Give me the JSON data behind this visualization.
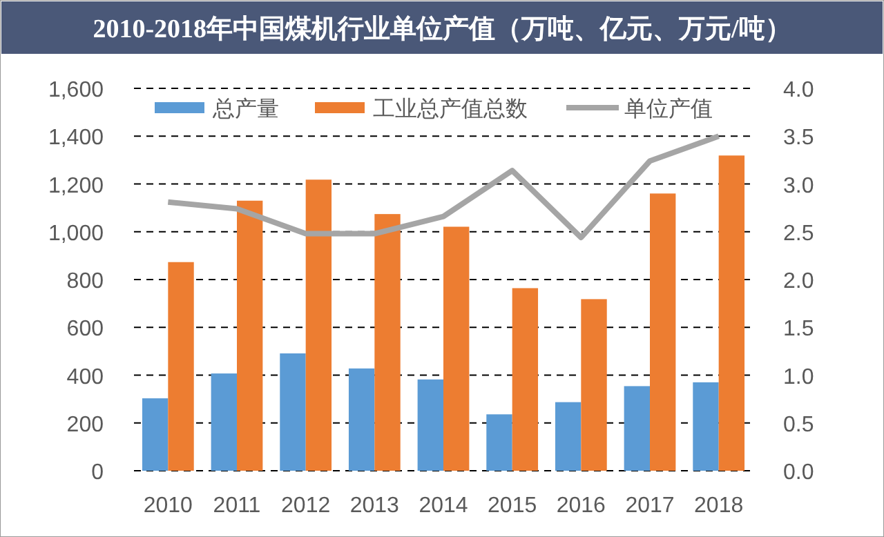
{
  "chart_data": {
    "type": "bar",
    "title": "2010-2018年中国煤机行业单位产值（万吨、亿元、万元/吨）",
    "categories": [
      "2010",
      "2011",
      "2012",
      "2013",
      "2014",
      "2015",
      "2016",
      "2017",
      "2018"
    ],
    "series": [
      {
        "name": "总产量",
        "color": "#5b9bd5",
        "values": [
          303,
          407,
          491,
          428,
          382,
          236,
          287,
          354,
          370
        ]
      },
      {
        "name": "工业总产值总数",
        "color": "#ed7d31",
        "values": [
          873,
          1130,
          1218,
          1074,
          1021,
          764,
          718,
          1160,
          1319
        ]
      },
      {
        "name": "单位产值",
        "type": "line",
        "axis": "y2",
        "color": "#a5a5a5",
        "values": [
          2.81,
          2.74,
          2.48,
          2.48,
          2.66,
          3.14,
          2.44,
          3.24,
          3.5
        ]
      }
    ],
    "ylim": [
      0,
      1600
    ],
    "yticks": [
      0,
      {
        "value": 200,
        "label": "200"
      },
      {
        "value": 400,
        "label": "400"
      },
      {
        "value": 600,
        "label": "600"
      },
      {
        "value": 800,
        "label": "800"
      },
      {
        "value": 1000,
        "label": "1,000"
      },
      {
        "value": 1200,
        "label": "1,200"
      },
      {
        "value": 1400,
        "label": "1,400"
      },
      {
        "value": 1600,
        "label": "1,600"
      }
    ],
    "y2lim": [
      0,
      4
    ],
    "y2ticks": [
      {
        "value": 0,
        "label": "0.0"
      },
      {
        "value": 0.5,
        "label": "0.5"
      },
      {
        "value": 1,
        "label": "1.0"
      },
      {
        "value": 1.5,
        "label": "1.5"
      },
      {
        "value": 2,
        "label": "2.0"
      },
      {
        "value": 2.5,
        "label": "2.5"
      },
      {
        "value": 3,
        "label": "3.0"
      },
      {
        "value": 3.5,
        "label": "3.5"
      },
      {
        "value": 4,
        "label": "4.0"
      }
    ],
    "grid": "y",
    "legend": "top",
    "line_style": "solid",
    "marker": "none"
  }
}
